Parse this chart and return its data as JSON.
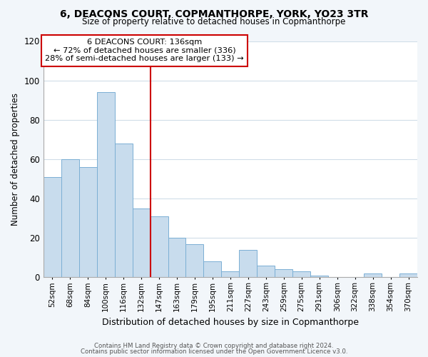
{
  "title1": "6, DEACONS COURT, COPMANTHORPE, YORK, YO23 3TR",
  "title2": "Size of property relative to detached houses in Copmanthorpe",
  "xlabel": "Distribution of detached houses by size in Copmanthorpe",
  "ylabel": "Number of detached properties",
  "bar_labels": [
    "52sqm",
    "68sqm",
    "84sqm",
    "100sqm",
    "116sqm",
    "132sqm",
    "147sqm",
    "163sqm",
    "179sqm",
    "195sqm",
    "211sqm",
    "227sqm",
    "243sqm",
    "259sqm",
    "275sqm",
    "291sqm",
    "306sqm",
    "322sqm",
    "338sqm",
    "354sqm",
    "370sqm"
  ],
  "bar_values": [
    51,
    60,
    56,
    94,
    68,
    35,
    31,
    20,
    17,
    8,
    3,
    14,
    6,
    4,
    3,
    1,
    0,
    0,
    2,
    0,
    2
  ],
  "bar_color": "#c8dced",
  "bar_edge_color": "#7bafd4",
  "highlight_line_color": "#cc0000",
  "annotation_title": "6 DEACONS COURT: 136sqm",
  "annotation_line1": "← 72% of detached houses are smaller (336)",
  "annotation_line2": "28% of semi-detached houses are larger (133) →",
  "annotation_box_edge_color": "#cc0000",
  "annotation_box_facecolor": "#ffffff",
  "ylim": [
    0,
    120
  ],
  "yticks": [
    0,
    20,
    40,
    60,
    80,
    100,
    120
  ],
  "background_color": "#f2f6fa",
  "plot_background": "#ffffff",
  "grid_color": "#d0dde8",
  "footer1": "Contains HM Land Registry data © Crown copyright and database right 2024.",
  "footer2": "Contains public sector information licensed under the Open Government Licence v3.0."
}
